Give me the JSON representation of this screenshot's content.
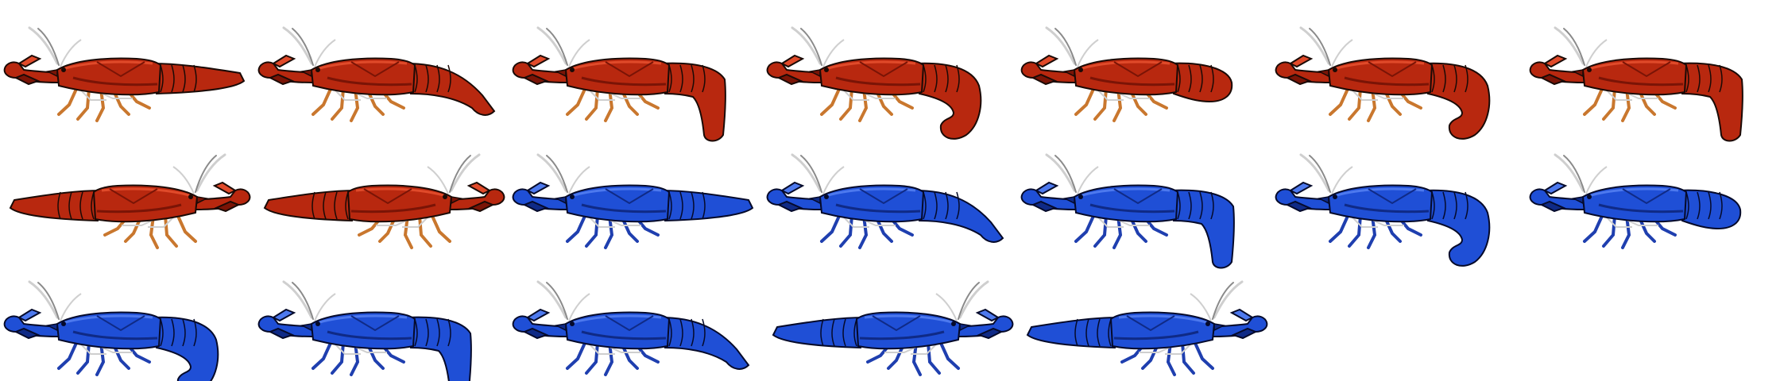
{
  "sprite_sheet": {
    "palettes": {
      "red": {
        "body": "#b8280f",
        "shade": "#7a1406",
        "highlight": "#e04a2a",
        "legs": "#c9772e",
        "antenna": "#cfcfcf",
        "outline": "#1a0a06"
      },
      "blue": {
        "body": "#1f4fd6",
        "shade": "#0f2a86",
        "highlight": "#4d79ee",
        "legs": "#1f3faf",
        "antenna": "#cfcfcf",
        "outline": "#050a2a"
      }
    },
    "frames": [
      {
        "color": "red",
        "facing": "left",
        "pose": "straight"
      },
      {
        "color": "red",
        "facing": "left",
        "pose": "tail-down-slight"
      },
      {
        "color": "red",
        "facing": "left",
        "pose": "tail-down"
      },
      {
        "color": "red",
        "facing": "left",
        "pose": "tail-curl"
      },
      {
        "color": "red",
        "facing": "left",
        "pose": "tail-tucked"
      },
      {
        "color": "red",
        "facing": "left",
        "pose": "tail-curl"
      },
      {
        "color": "red",
        "facing": "left",
        "pose": "tail-down"
      },
      {
        "color": "red",
        "facing": "right",
        "pose": "straight"
      },
      {
        "color": "red",
        "facing": "right",
        "pose": "straight"
      },
      {
        "color": "blue",
        "facing": "left",
        "pose": "straight"
      },
      {
        "color": "blue",
        "facing": "left",
        "pose": "tail-down-slight"
      },
      {
        "color": "blue",
        "facing": "left",
        "pose": "tail-down"
      },
      {
        "color": "blue",
        "facing": "left",
        "pose": "tail-curl"
      },
      {
        "color": "blue",
        "facing": "left",
        "pose": "tail-tucked"
      },
      {
        "color": "blue",
        "facing": "left",
        "pose": "tail-curl"
      },
      {
        "color": "blue",
        "facing": "left",
        "pose": "tail-down"
      },
      {
        "color": "blue",
        "facing": "left",
        "pose": "tail-down-slight"
      },
      {
        "color": "blue",
        "facing": "right",
        "pose": "straight"
      },
      {
        "color": "blue",
        "facing": "right",
        "pose": "straight"
      }
    ]
  }
}
